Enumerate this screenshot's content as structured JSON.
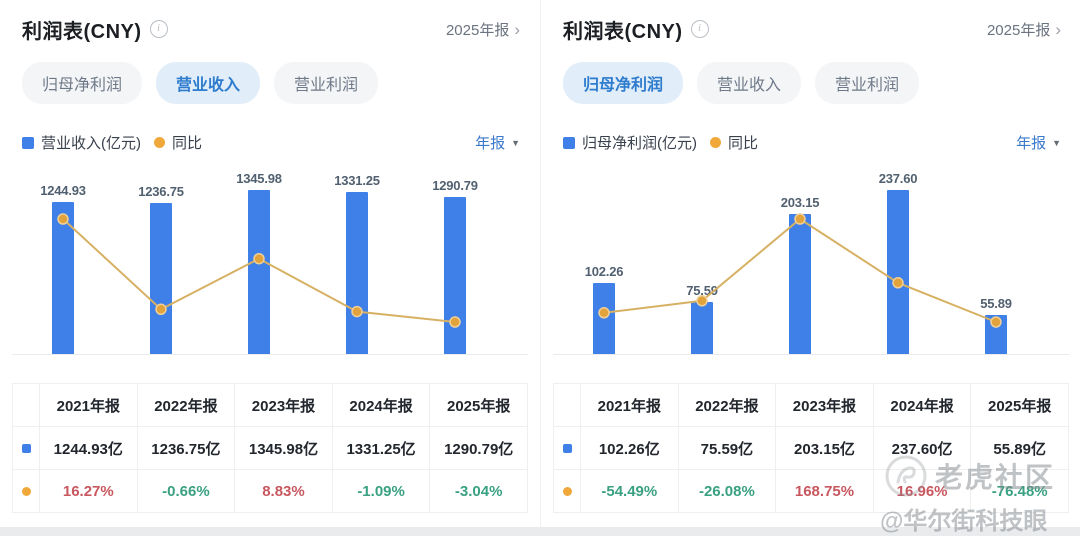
{
  "panels": [
    {
      "header": {
        "title": "利润表(CNY)",
        "period": "2025年报",
        "chevron": "›"
      },
      "tabs": [
        {
          "label": "归母净利润",
          "active": false
        },
        {
          "label": "营业收入",
          "active": true
        },
        {
          "label": "营业利润",
          "active": false
        }
      ],
      "legend": {
        "series_label": "营业收入(亿元)",
        "yoy_label": "同比",
        "period_filter": "年报"
      },
      "table": {
        "headers": [
          "2021年报",
          "2022年报",
          "2023年报",
          "2024年报",
          "2025年报"
        ],
        "rows": [
          {
            "icon": "blue-square",
            "cells": [
              "1244.93亿",
              "1236.75亿",
              "1345.98亿",
              "1331.25亿",
              "1290.79亿"
            ]
          },
          {
            "icon": "yellow-dot",
            "cells": [
              "16.27%",
              "-0.66%",
              "8.83%",
              "-1.09%",
              "-3.04%"
            ]
          }
        ]
      }
    },
    {
      "header": {
        "title": "利润表(CNY)",
        "period": "2025年报",
        "chevron": "›"
      },
      "tabs": [
        {
          "label": "归母净利润",
          "active": true
        },
        {
          "label": "营业收入",
          "active": false
        },
        {
          "label": "营业利润",
          "active": false
        }
      ],
      "legend": {
        "series_label": "归母净利润(亿元)",
        "yoy_label": "同比",
        "period_filter": "年报"
      },
      "table": {
        "headers": [
          "2021年报",
          "2022年报",
          "2023年报",
          "2024年报",
          "2025年报"
        ],
        "rows": [
          {
            "icon": "blue-square",
            "cells": [
              "102.26亿",
              "75.59亿",
              "203.15亿",
              "237.60亿",
              "55.89亿"
            ]
          },
          {
            "icon": "yellow-dot",
            "cells": [
              "-54.49%",
              "-26.08%",
              "168.75%",
              "16.96%",
              "-76.48%"
            ]
          }
        ]
      }
    }
  ],
  "chart_data": [
    {
      "type": "bar",
      "title": "利润表(CNY) 营业收入",
      "categories": [
        "2021年报",
        "2022年报",
        "2023年报",
        "2024年报",
        "2025年报"
      ],
      "series": [
        {
          "name": "营业收入(亿元)",
          "type": "bar",
          "values": [
            1244.93,
            1236.75,
            1345.98,
            1331.25,
            1290.79
          ]
        },
        {
          "name": "同比",
          "type": "line",
          "unit": "%",
          "values": [
            16.27,
            -0.66,
            8.83,
            -1.09,
            -3.04
          ]
        }
      ],
      "xlabel": "",
      "ylabel": "亿元",
      "grid": false,
      "legend_position": "top-left"
    },
    {
      "type": "bar",
      "title": "利润表(CNY) 归母净利润",
      "categories": [
        "2021年报",
        "2022年报",
        "2023年报",
        "2024年报",
        "2025年报"
      ],
      "series": [
        {
          "name": "归母净利润(亿元)",
          "type": "bar",
          "values": [
            102.26,
            75.59,
            203.15,
            237.6,
            55.89
          ]
        },
        {
          "name": "同比",
          "type": "line",
          "unit": "%",
          "values": [
            -54.49,
            -26.08,
            168.75,
            16.96,
            -76.48
          ]
        }
      ],
      "xlabel": "",
      "ylabel": "亿元",
      "grid": false,
      "legend_position": "top-left"
    }
  ],
  "watermark": {
    "community": "老虎社区",
    "author": "@华尔街科技眼"
  },
  "colors": {
    "bar_blue": "#3e7fe8",
    "line_gold": "#d7b163",
    "dot_gold": "#e3a33c",
    "positive_red": "#c8575f",
    "negative_green": "#39a181",
    "tab_active_text": "#2e7ccd",
    "tab_active_bg": "#e1edf9",
    "link_blue": "#3b79cb"
  }
}
